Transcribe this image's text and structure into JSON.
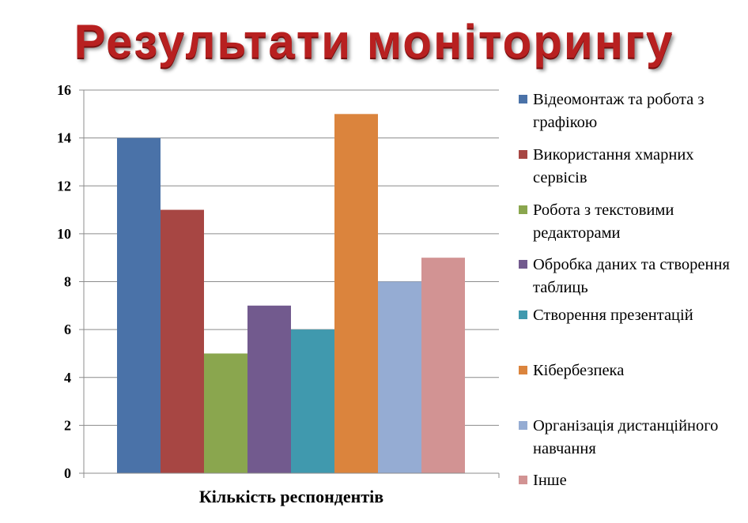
{
  "slide": {
    "title": "Результати моніторингу"
  },
  "chart_data": {
    "type": "bar",
    "title": "Результати моніторингу",
    "xlabel": "Кількість респондентів",
    "ylabel": "",
    "ylim": [
      0,
      16
    ],
    "y_ticks": [
      "0",
      "2",
      "4",
      "6",
      "8",
      "10",
      "12",
      "14",
      "16"
    ],
    "grid": true,
    "legend_position": "right",
    "series": [
      {
        "name": "Відеомонтаж та робота з графікою",
        "values": [
          14
        ],
        "color": "#4A72A8"
      },
      {
        "name": "Використання хмарних сервісів",
        "values": [
          11
        ],
        "color": "#A74643"
      },
      {
        "name": "Робота з текстовими редакторами",
        "values": [
          5
        ],
        "color": "#8AA64E"
      },
      {
        "name": "Обробка даних та створення таблиць",
        "values": [
          7
        ],
        "color": "#725A8E"
      },
      {
        "name": "Створення презентацій",
        "values": [
          6
        ],
        "color": "#4099AE"
      },
      {
        "name": "Кібербезпека",
        "values": [
          15
        ],
        "color": "#DB843D"
      },
      {
        "name": "Організація дистанційного навчання",
        "values": [
          8
        ],
        "color": "#95ACD3"
      },
      {
        "name": "Інше",
        "values": [
          9
        ],
        "color": "#D29393"
      }
    ]
  }
}
